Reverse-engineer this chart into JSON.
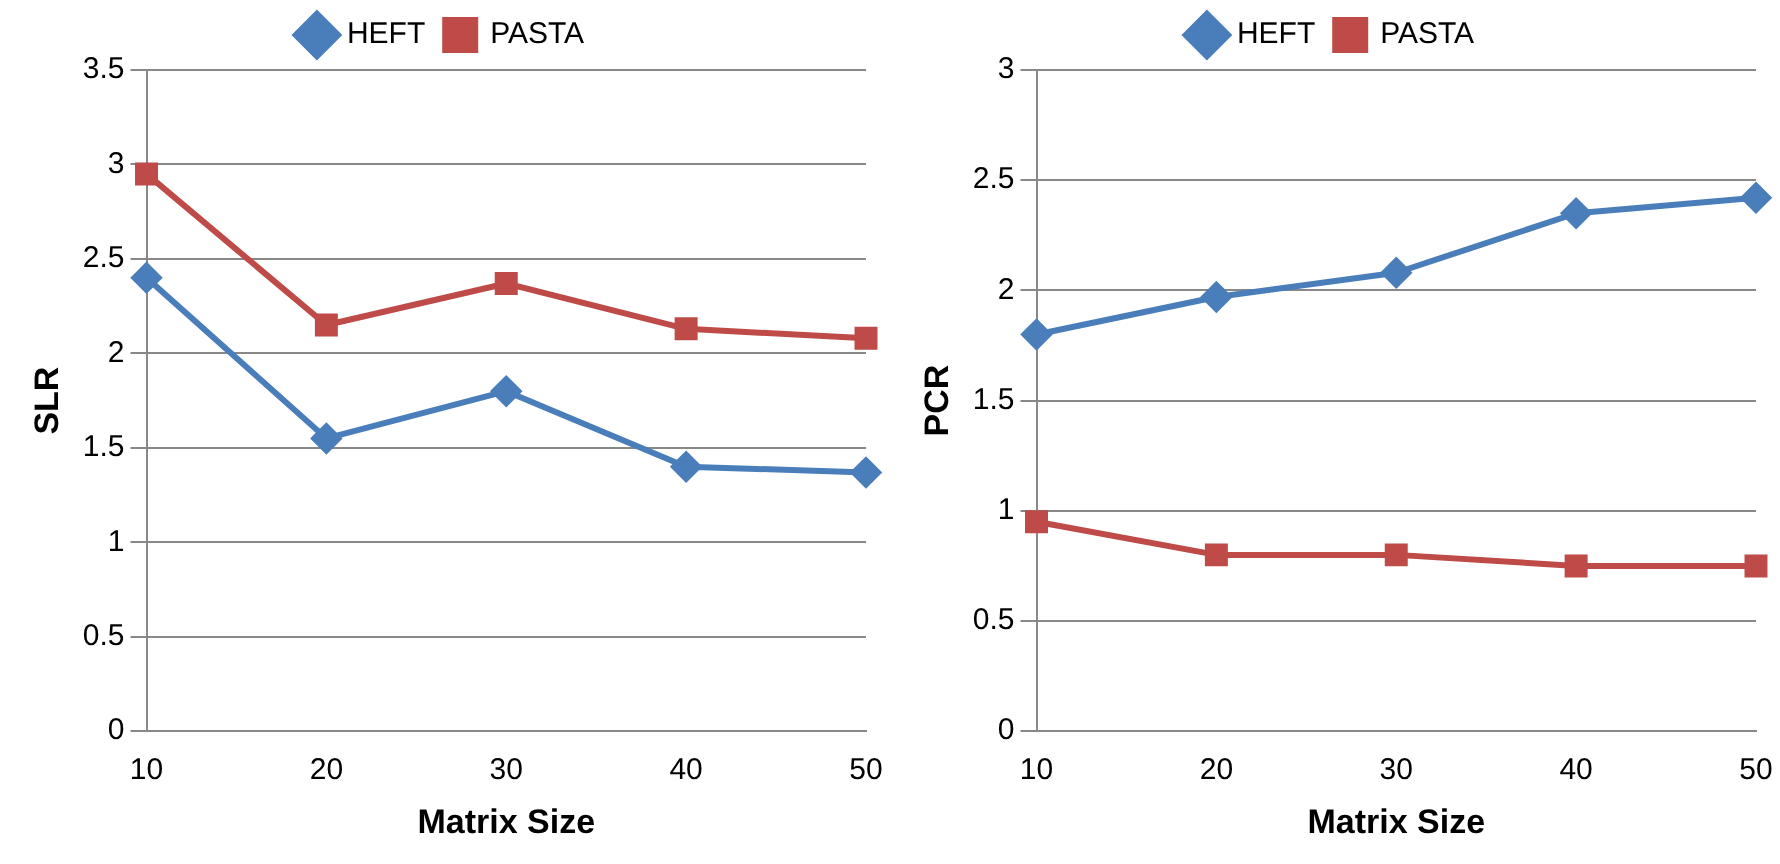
{
  "chart_data": [
    {
      "type": "line",
      "xlabel": "Matrix Size",
      "ylabel": "SLR",
      "categories": [
        "10",
        "20",
        "30",
        "40",
        "50"
      ],
      "ylim": [
        0,
        3.5
      ],
      "yticks": [
        0,
        0.5,
        1,
        1.5,
        2,
        2.5,
        3,
        3.5
      ],
      "grid": "y",
      "legend": "top",
      "series": [
        {
          "name": "HEFT",
          "color": "#4a7ebb",
          "marker": "diamond",
          "values": [
            2.4,
            1.55,
            1.8,
            1.4,
            1.37
          ]
        },
        {
          "name": "PASTA",
          "color": "#be4b48",
          "marker": "square",
          "values": [
            2.95,
            2.15,
            2.37,
            2.13,
            2.08
          ]
        }
      ]
    },
    {
      "type": "line",
      "xlabel": "Matrix Size",
      "ylabel": "PCR",
      "categories": [
        "10",
        "20",
        "30",
        "40",
        "50"
      ],
      "ylim": [
        0,
        3
      ],
      "yticks": [
        0,
        0.5,
        1,
        1.5,
        2,
        2.5,
        3
      ],
      "grid": "y",
      "legend": "top",
      "series": [
        {
          "name": "HEFT",
          "color": "#4a7ebb",
          "marker": "diamond",
          "values": [
            1.8,
            1.97,
            2.08,
            2.35,
            2.42
          ]
        },
        {
          "name": "PASTA",
          "color": "#be4b48",
          "marker": "square",
          "values": [
            0.95,
            0.8,
            0.8,
            0.75,
            0.75
          ]
        }
      ]
    }
  ]
}
